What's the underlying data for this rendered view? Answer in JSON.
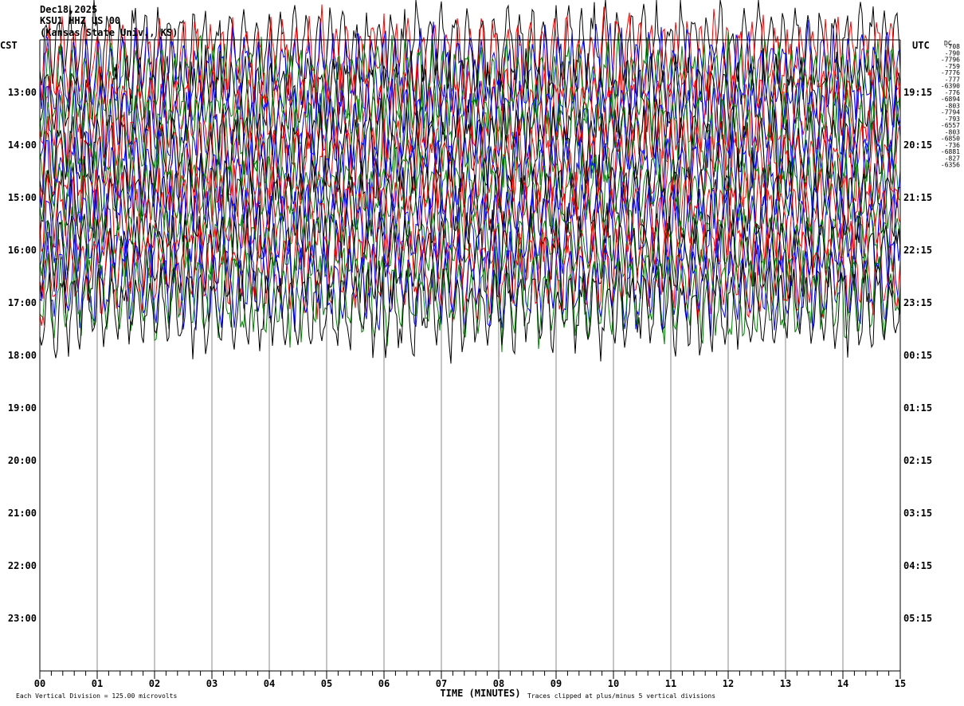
{
  "header": {
    "date": "Dec18,2025",
    "station": "KSU1 HHZ US 00",
    "location": "(Kansas State Univ., KS)"
  },
  "axes": {
    "left_label": "CST",
    "right_label": "UTC",
    "dc_label": "DC",
    "xlabel": "TIME (MINUTES)"
  },
  "footer": {
    "division": "Each Vertical Division = 125.00 microvolts",
    "clip": "Traces clipped at plus/minus 5 vertical divisions"
  },
  "chart_data": {
    "type": "line",
    "title": "",
    "xlabel": "TIME (MINUTES)",
    "xlim": [
      0,
      15
    ],
    "x_ticks": [
      "00",
      "01",
      "02",
      "03",
      "04",
      "05",
      "06",
      "07",
      "08",
      "09",
      "10",
      "11",
      "12",
      "13",
      "14",
      "15"
    ],
    "row_minutes": 15,
    "rows_total": 48,
    "rows_recorded": 22,
    "last_row_minutes": 0.1,
    "left_ticks": [
      "13:00",
      "14:00",
      "15:00",
      "16:00",
      "17:00",
      "18:00",
      "19:00",
      "20:00",
      "21:00",
      "22:00",
      "23:00"
    ],
    "right_ticks": [
      "19:15",
      "20:15",
      "21:15",
      "22:15",
      "23:15",
      "00:15",
      "01:15",
      "02:15",
      "03:15",
      "04:15",
      "05:15"
    ],
    "dc_offsets": [
      "-708",
      "-790",
      "-7796",
      "-759",
      "-7776",
      "-777",
      "-6390",
      "-776",
      "-6894",
      "-803",
      "-7794",
      "-793",
      "-6557",
      "-803",
      "-6850",
      "-736",
      "-6881",
      "-827",
      "-6356"
    ],
    "trace_colors": [
      "#000000",
      "#ff0000",
      "#0000ff",
      "#008000"
    ],
    "clip_divisions": 5,
    "division_microvolts": 125.0
  }
}
